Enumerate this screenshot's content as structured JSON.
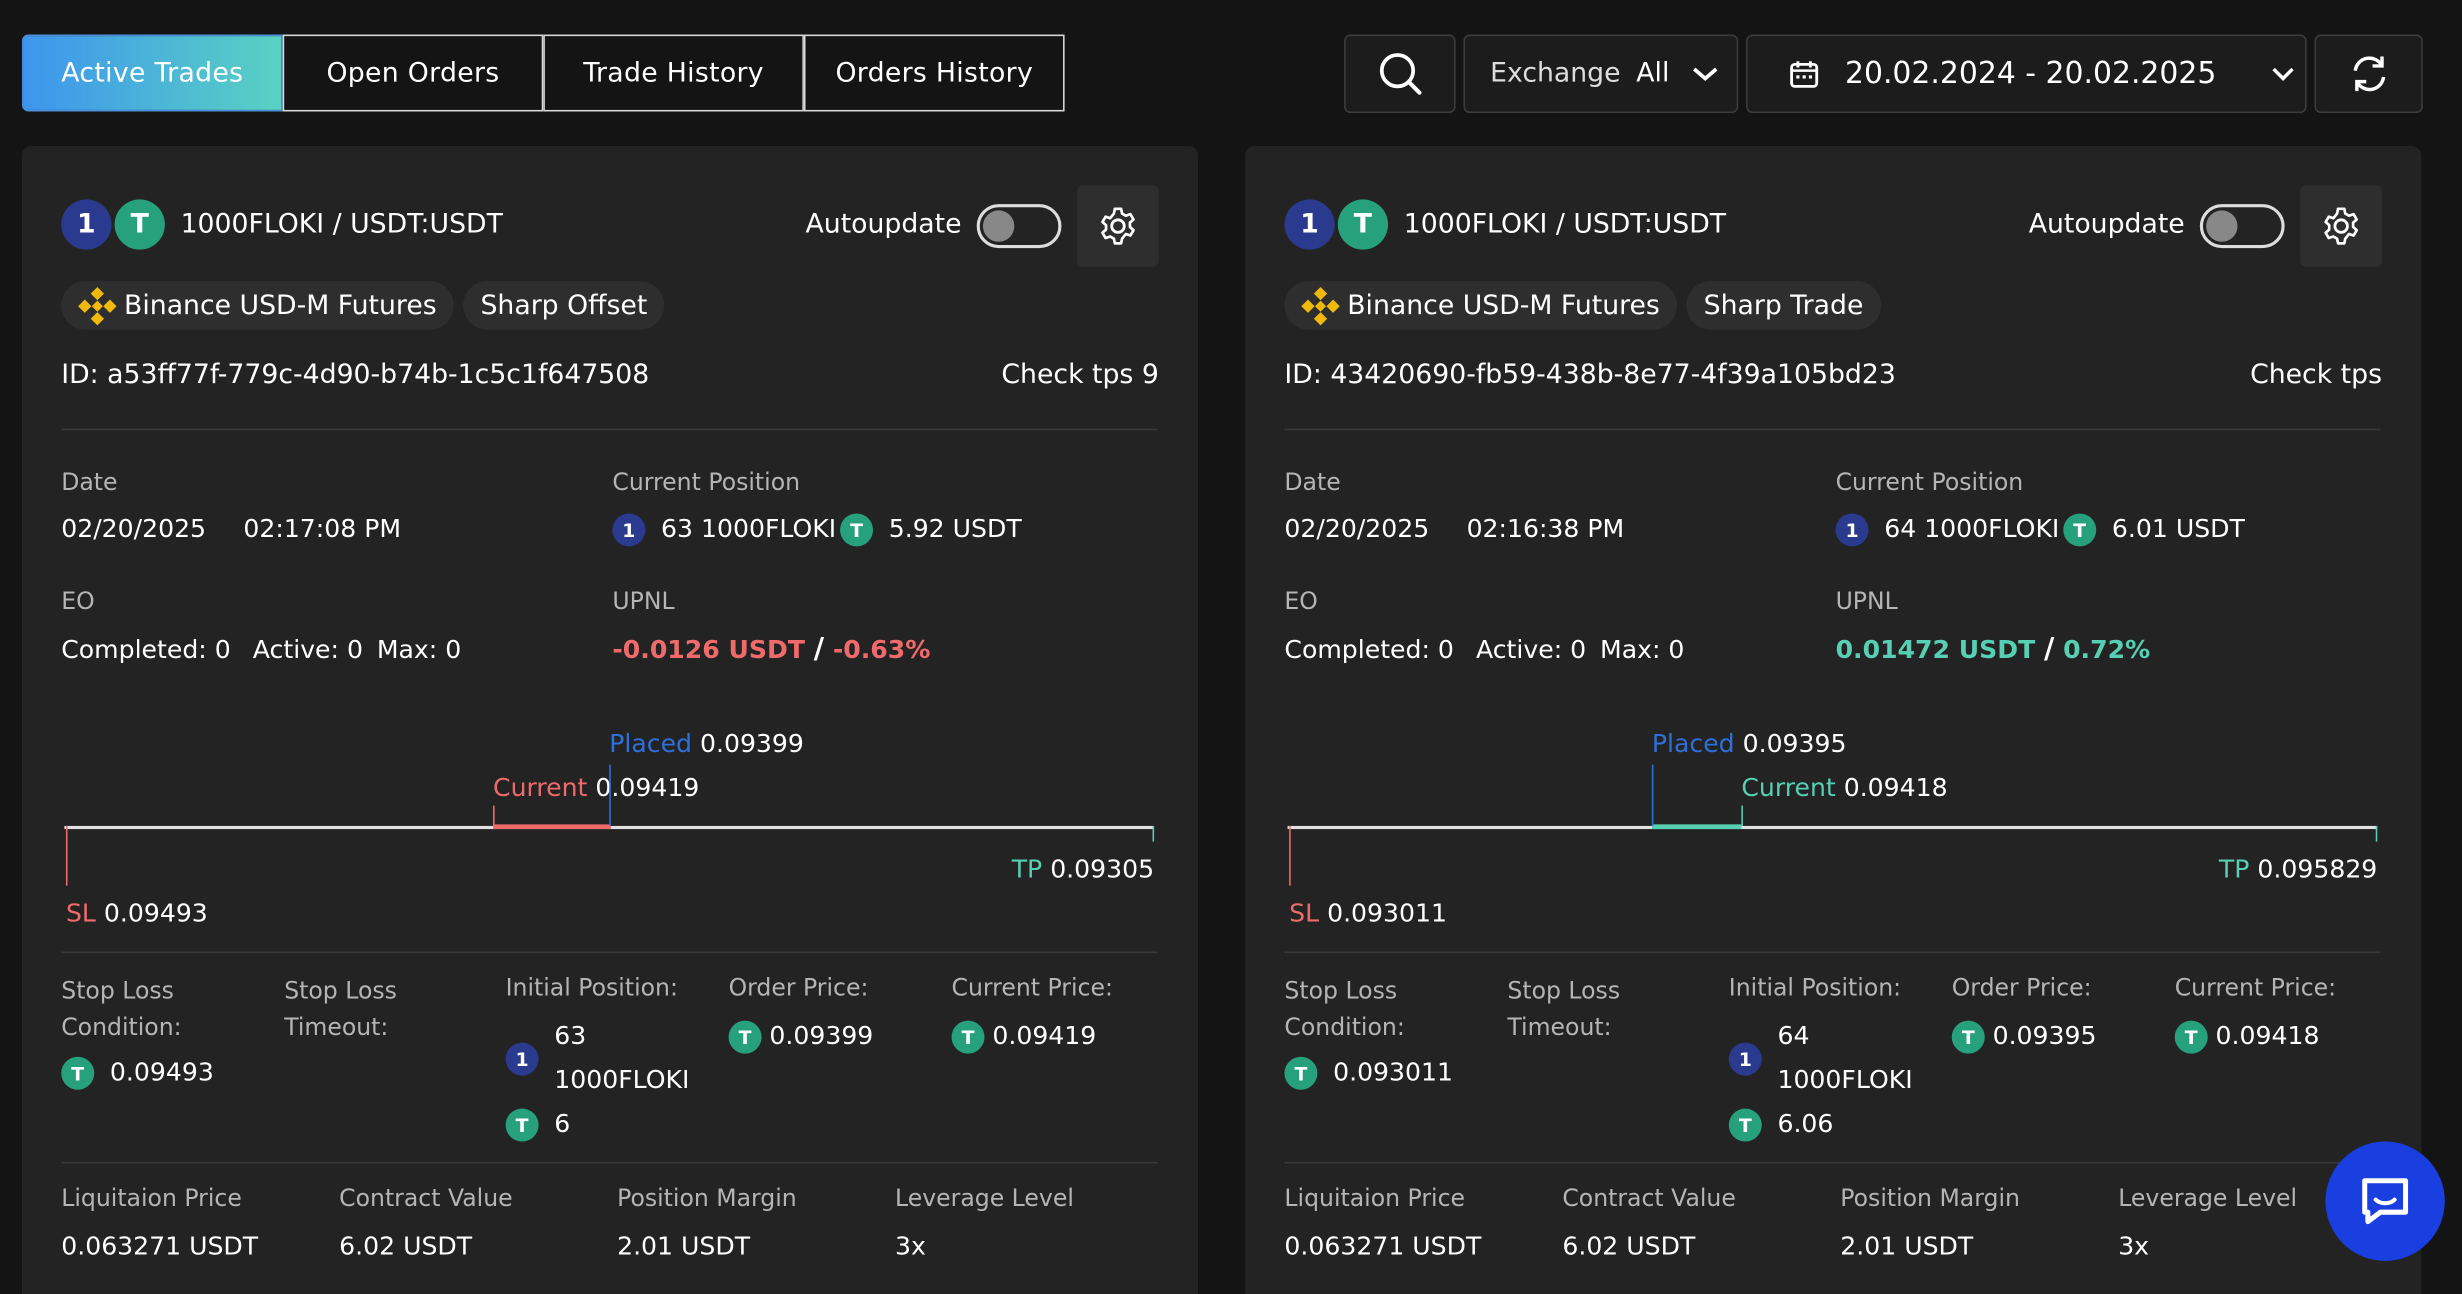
{
  "tabs": [
    {
      "label": "Active Trades"
    },
    {
      "label": "Open Orders"
    },
    {
      "label": "Trade History"
    },
    {
      "label": "Orders History"
    }
  ],
  "filters": {
    "exchange_label": "Exchange",
    "exchange_value": "All",
    "date_range": "20.02.2024 - 20.02.2025"
  },
  "cards": [
    {
      "pair": "1000FLOKI / USDT:USDT",
      "autoupdate": "Autoupdate",
      "exchange": "Binance USD-M Futures",
      "strategy": "Sharp Offset",
      "id": "ID: a53ff77f-779c-4d90-b74b-1c5c1f647508",
      "check": "Check tps 9",
      "date_label": "Date",
      "date": "02/20/2025",
      "time": "02:17:08 PM",
      "pos_label": "Current Position",
      "pos_qty": "63 1000FLOKI",
      "pos_usdt": "5.92 USDT",
      "eo_label": "EO",
      "eo_completed": "Completed: 0",
      "eo_active": "Active: 0",
      "eo_max": "Max: 0",
      "upnl_label": "UPNL",
      "upnl_value": "-0.0126 USDT",
      "upnl_pct": "-0.63%",
      "upnl_sign": "neg",
      "placed_label": "Placed",
      "placed": "0.09399",
      "current_label": "Current",
      "current": "0.09419",
      "tp_label": "TP",
      "tp": "0.09305",
      "sl_label": "SL",
      "sl": "0.09493",
      "slc_label": "Stop Loss Condition:",
      "slc": "0.09493",
      "slt_label": "Stop Loss Timeout:",
      "ip_label": "Initial Position:",
      "ip_qty": "63",
      "ip_coin": "1000FLOKI",
      "ip_usdt": "6",
      "op_label": "Order Price:",
      "op": "0.09399",
      "cp_label": "Current Price:",
      "cp": "0.09419",
      "liq_label": "Liquitaion Price",
      "liq": "0.063271 USDT",
      "cv_label": "Contract Value",
      "cv": "6.02 USDT",
      "pm_label": "Position Margin",
      "pm": "2.01 USDT",
      "lev_label": "Leverage Level",
      "lev": "3x"
    },
    {
      "pair": "1000FLOKI / USDT:USDT",
      "autoupdate": "Autoupdate",
      "exchange": "Binance USD-M Futures",
      "strategy": "Sharp Trade",
      "id": "ID: 43420690-fb59-438b-8e77-4f39a105bd23",
      "check": "Check tps",
      "date_label": "Date",
      "date": "02/20/2025",
      "time": "02:16:38 PM",
      "pos_label": "Current Position",
      "pos_qty": "64 1000FLOKI",
      "pos_usdt": "6.01 USDT",
      "eo_label": "EO",
      "eo_completed": "Completed: 0",
      "eo_active": "Active: 0",
      "eo_max": "Max: 0",
      "upnl_label": "UPNL",
      "upnl_value": "0.01472 USDT",
      "upnl_pct": "0.72%",
      "upnl_sign": "pos",
      "placed_label": "Placed",
      "placed": "0.09395",
      "current_label": "Current",
      "current": "0.09418",
      "tp_label": "TP",
      "tp": "0.095829",
      "sl_label": "SL",
      "sl": "0.093011",
      "slc_label": "Stop Loss Condition:",
      "slc": "0.093011",
      "slt_label": "Stop Loss Timeout:",
      "ip_label": "Initial Position:",
      "ip_qty": "64",
      "ip_coin": "1000FLOKI",
      "ip_usdt": "6.06",
      "op_label": "Order Price:",
      "op": "0.09395",
      "cp_label": "Current Price:",
      "cp": "0.09418",
      "liq_label": "Liquitaion Price",
      "liq": "0.063271 USDT",
      "cv_label": "Contract Value",
      "cv": "6.02 USDT",
      "pm_label": "Position Margin",
      "pm": "2.01 USDT",
      "lev_label": "Leverage Level",
      "lev": "3x"
    }
  ],
  "icons": {
    "search": "search-icon",
    "refresh": "refresh-icon",
    "calendar": "calendar-icon",
    "gear": "gear-icon",
    "chat": "chat-icon",
    "floki": "1",
    "usdt": "T"
  },
  "colors": {
    "accent_start": "#3d95ee",
    "accent_end": "#59d2c2",
    "negative": "#ef6b6b",
    "positive": "#56cfb2",
    "placed": "#2f6fd9"
  }
}
